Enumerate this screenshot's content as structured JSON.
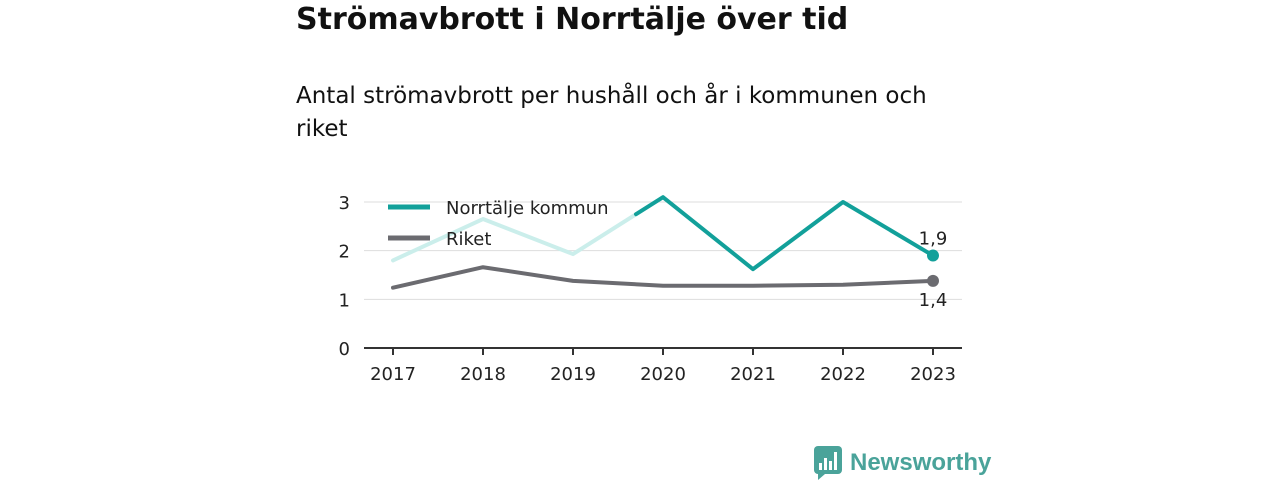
{
  "header": {
    "title": "Strömavbrott i Norrtälje över tid",
    "subtitle": "Antal strömavbrott per hushåll och år i kommunen och riket"
  },
  "brand": {
    "name": "Newsworthy",
    "icon": "bar-chart-speech-bubble-icon"
  },
  "colors": {
    "norrtalje": "#12a09a",
    "norrtalje_faded": "#cbeeeb",
    "riket": "#6b6b70",
    "axis": "#333333",
    "grid": "#dddddd",
    "brand": "#4aa39a"
  },
  "chart_data": {
    "type": "line",
    "title": "Strömavbrott i Norrtälje över tid",
    "subtitle": "Antal strömavbrott per hushåll och år i kommunen och riket",
    "x": [
      "2017",
      "2018",
      "2019",
      "2020",
      "2021",
      "2022",
      "2023"
    ],
    "ylim": [
      0,
      3
    ],
    "yticks": [
      "0",
      "1",
      "2",
      "3"
    ],
    "grid": true,
    "legend": "top-left",
    "series": [
      {
        "name": "Norrtälje kommun",
        "values": [
          1.8,
          2.65,
          1.93,
          3.1,
          1.62,
          3.0,
          1.9
        ],
        "end_label": "1,9"
      },
      {
        "name": "Riket",
        "values": [
          1.24,
          1.66,
          1.38,
          1.28,
          1.28,
          1.3,
          1.38
        ],
        "end_label": "1,4"
      }
    ]
  }
}
